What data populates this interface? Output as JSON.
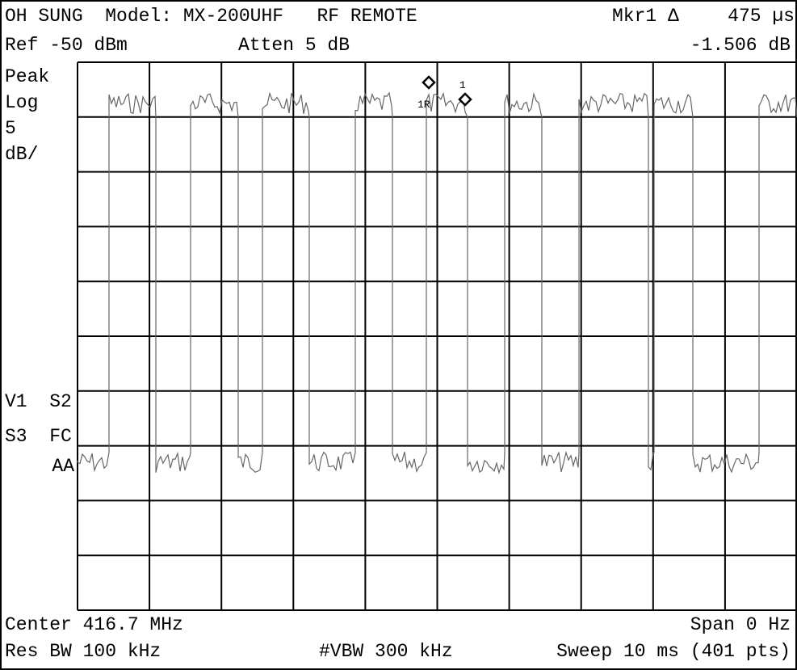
{
  "header": {
    "title": "OH SUNG  Model: MX-200UHF   RF REMOTE",
    "marker_label": "Mkr1 Δ",
    "marker_value": "475 µs",
    "ref_level": "Ref -50 dBm",
    "attenuation": "Atten 5 dB",
    "marker_delta": "-1.506 dB"
  },
  "left_panel": {
    "detector": "Peak",
    "scale_type": "Log",
    "scale_value": "5",
    "scale_unit": "dB/",
    "flags_1": "V1  S2",
    "flags_2": "S3  FC",
    "flags_3": "AA"
  },
  "markers": {
    "reference": "1R",
    "marker": "1"
  },
  "footer": {
    "center": "Center 416.7 MHz",
    "span": "Span 0 Hz",
    "res_bw": "Res BW 100 kHz",
    "vbw": "#VBW 300 kHz",
    "sweep": "Sweep 10 ms (401 pts)"
  }
}
